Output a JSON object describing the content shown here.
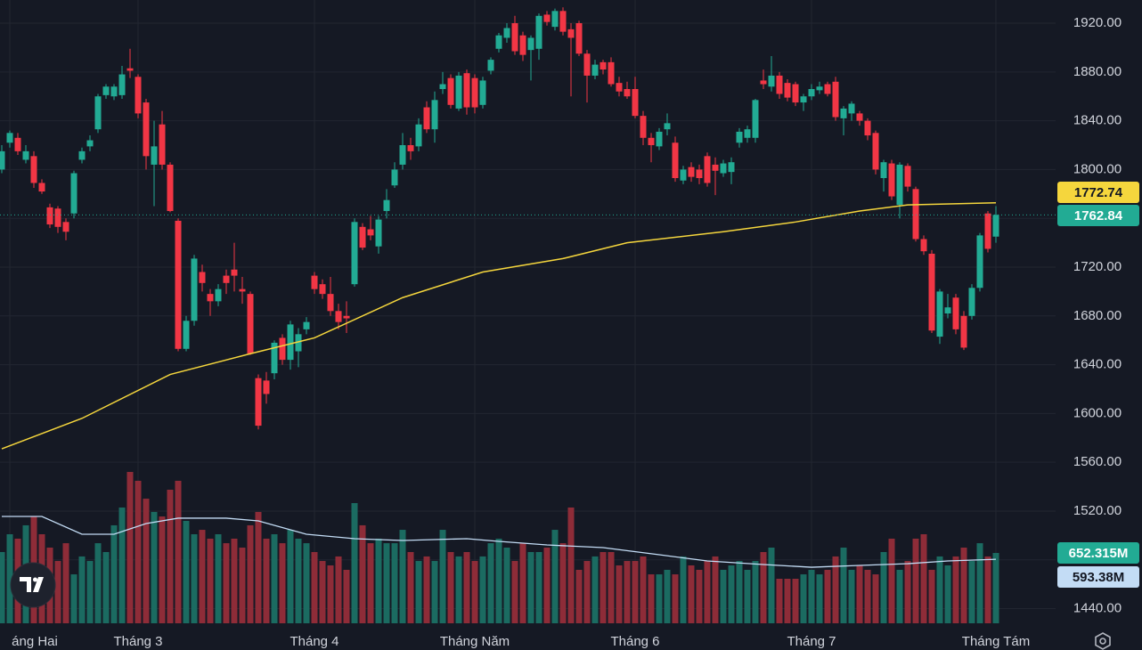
{
  "chart_data": {
    "type": "candlestick",
    "up_color": "#22ab94",
    "down_color": "#f23645",
    "volume_up_color": "#1b6b61",
    "volume_down_color": "#8e2c38",
    "grid": true,
    "ylim": [
      1428,
      1939
    ],
    "yticks": [
      {
        "value": 1440,
        "label": "1440.00"
      },
      {
        "value": 1480,
        "label": "1480.00"
      },
      {
        "value": 1520,
        "label": "1520.00"
      },
      {
        "value": 1560,
        "label": "1560.00"
      },
      {
        "value": 1600,
        "label": "1600.00"
      },
      {
        "value": 1640,
        "label": "1640.00"
      },
      {
        "value": 1680,
        "label": "1680.00"
      },
      {
        "value": 1720,
        "label": "1720.00"
      },
      {
        "value": 1760,
        "label": "1760.00"
      },
      {
        "value": 1800,
        "label": "1800.00"
      },
      {
        "value": 1840,
        "label": "1840.00"
      },
      {
        "value": 1880,
        "label": "1880.00"
      },
      {
        "value": 1920,
        "label": "1920.00"
      }
    ],
    "y2lim": [
      0,
      5782
    ],
    "xticks": [
      {
        "value": 1,
        "label": "áng Hai"
      },
      {
        "value": 17,
        "label": "Tháng 3"
      },
      {
        "value": 39,
        "label": "Tháng 4"
      },
      {
        "value": 59,
        "label": "Tháng Năm"
      },
      {
        "value": 79,
        "label": "Tháng 6"
      },
      {
        "value": 101,
        "label": "Tháng 7"
      },
      {
        "value": 124,
        "label": "Tháng Tám"
      }
    ],
    "candles": [
      [
        1800,
        1820,
        1797,
        1815
      ],
      [
        1822,
        1832,
        1818,
        1830
      ],
      [
        1826,
        1830,
        1812,
        1815
      ],
      [
        1808,
        1820,
        1805,
        1815
      ],
      [
        1811,
        1815,
        1785,
        1789
      ],
      [
        1789,
        1792,
        1780,
        1782
      ],
      [
        1769,
        1772,
        1752,
        1755
      ],
      [
        1768,
        1770,
        1748,
        1753
      ],
      [
        1757,
        1760,
        1742,
        1749
      ],
      [
        1764,
        1799,
        1760,
        1797
      ],
      [
        1808,
        1818,
        1805,
        1815
      ],
      [
        1819,
        1828,
        1815,
        1824
      ],
      [
        1833,
        1862,
        1830,
        1860
      ],
      [
        1861,
        1870,
        1858,
        1868
      ],
      [
        1860,
        1870,
        1857,
        1868
      ],
      [
        1861,
        1885,
        1858,
        1878
      ],
      [
        1883,
        1899,
        1875,
        1881
      ],
      [
        1876,
        1878,
        1842,
        1846
      ],
      [
        1855,
        1858,
        1800,
        1811
      ],
      [
        1804,
        1840,
        1770,
        1819
      ],
      [
        1837,
        1848,
        1800,
        1804
      ],
      [
        1804,
        1806,
        1765,
        1766
      ],
      [
        1758,
        1760,
        1651,
        1653
      ],
      [
        1653,
        1680,
        1651,
        1676
      ],
      [
        1676,
        1730,
        1672,
        1727
      ],
      [
        1716,
        1722,
        1700,
        1707
      ],
      [
        1698,
        1702,
        1680,
        1692
      ],
      [
        1692,
        1706,
        1688,
        1702
      ],
      [
        1713,
        1718,
        1698,
        1707
      ],
      [
        1718,
        1740,
        1700,
        1713
      ],
      [
        1702,
        1712,
        1690,
        1700
      ],
      [
        1698,
        1700,
        1648,
        1649
      ],
      [
        1629,
        1632,
        1587,
        1590
      ],
      [
        1627,
        1634,
        1608,
        1616
      ],
      [
        1633,
        1660,
        1628,
        1658
      ],
      [
        1662,
        1665,
        1640,
        1644
      ],
      [
        1644,
        1676,
        1636,
        1673
      ],
      [
        1651,
        1670,
        1638,
        1665
      ],
      [
        1669,
        1679,
        1665,
        1675
      ],
      [
        1713,
        1716,
        1698,
        1702
      ],
      [
        1706,
        1710,
        1694,
        1698
      ],
      [
        1698,
        1712,
        1680,
        1684
      ],
      [
        1684,
        1690,
        1669,
        1675
      ],
      [
        1680,
        1692,
        1666,
        1678
      ],
      [
        1706,
        1760,
        1704,
        1757
      ],
      [
        1753,
        1756,
        1734,
        1736
      ],
      [
        1751,
        1762,
        1742,
        1746
      ],
      [
        1737,
        1762,
        1731,
        1759
      ],
      [
        1766,
        1784,
        1760,
        1775
      ],
      [
        1787,
        1806,
        1785,
        1800
      ],
      [
        1804,
        1830,
        1800,
        1820
      ],
      [
        1820,
        1826,
        1808,
        1815
      ],
      [
        1819,
        1842,
        1815,
        1837
      ],
      [
        1851,
        1856,
        1830,
        1833
      ],
      [
        1833,
        1864,
        1822,
        1857
      ],
      [
        1866,
        1880,
        1862,
        1870
      ],
      [
        1875,
        1878,
        1850,
        1853
      ],
      [
        1850,
        1880,
        1848,
        1877
      ],
      [
        1879,
        1882,
        1845,
        1851
      ],
      [
        1875,
        1878,
        1846,
        1851
      ],
      [
        1853,
        1876,
        1850,
        1873
      ],
      [
        1881,
        1892,
        1878,
        1890
      ],
      [
        1899,
        1912,
        1896,
        1910
      ],
      [
        1908,
        1920,
        1904,
        1916
      ],
      [
        1920,
        1926,
        1894,
        1897
      ],
      [
        1910,
        1913,
        1889,
        1894
      ],
      [
        1898,
        1910,
        1873,
        1908
      ],
      [
        1899,
        1928,
        1890,
        1926
      ],
      [
        1927,
        1930,
        1918,
        1921
      ],
      [
        1917,
        1932,
        1914,
        1930
      ],
      [
        1930,
        1933,
        1910,
        1913
      ],
      [
        1915,
        1920,
        1860,
        1908
      ],
      [
        1920,
        1922,
        1893,
        1895
      ],
      [
        1895,
        1898,
        1855,
        1877
      ],
      [
        1877,
        1890,
        1874,
        1886
      ],
      [
        1888,
        1890,
        1878,
        1882
      ],
      [
        1888,
        1892,
        1868,
        1870
      ],
      [
        1871,
        1876,
        1860,
        1864
      ],
      [
        1866,
        1872,
        1858,
        1860
      ],
      [
        1866,
        1876,
        1842,
        1844
      ],
      [
        1844,
        1848,
        1820,
        1826
      ],
      [
        1826,
        1830,
        1806,
        1820
      ],
      [
        1819,
        1834,
        1816,
        1831
      ],
      [
        1833,
        1846,
        1828,
        1838
      ],
      [
        1822,
        1827,
        1790,
        1793
      ],
      [
        1791,
        1803,
        1788,
        1800
      ],
      [
        1802,
        1806,
        1790,
        1794
      ],
      [
        1800,
        1804,
        1788,
        1793
      ],
      [
        1811,
        1814,
        1786,
        1789
      ],
      [
        1804,
        1810,
        1779,
        1799
      ],
      [
        1797,
        1808,
        1794,
        1805
      ],
      [
        1798,
        1810,
        1788,
        1806
      ],
      [
        1822,
        1834,
        1818,
        1831
      ],
      [
        1826,
        1836,
        1822,
        1833
      ],
      [
        1826,
        1858,
        1822,
        1857
      ],
      [
        1873,
        1882,
        1866,
        1870
      ],
      [
        1868,
        1893,
        1864,
        1877
      ],
      [
        1877,
        1880,
        1858,
        1862
      ],
      [
        1871,
        1874,
        1856,
        1859
      ],
      [
        1870,
        1872,
        1852,
        1855
      ],
      [
        1855,
        1862,
        1848,
        1860
      ],
      [
        1860,
        1870,
        1857,
        1866
      ],
      [
        1865,
        1872,
        1862,
        1868
      ],
      [
        1870,
        1872,
        1860,
        1862
      ],
      [
        1872,
        1876,
        1840,
        1843
      ],
      [
        1842,
        1852,
        1828,
        1850
      ],
      [
        1846,
        1856,
        1840,
        1854
      ],
      [
        1846,
        1848,
        1836,
        1840
      ],
      [
        1840,
        1842,
        1824,
        1828
      ],
      [
        1830,
        1832,
        1796,
        1800
      ],
      [
        1793,
        1808,
        1782,
        1806
      ],
      [
        1805,
        1808,
        1775,
        1778
      ],
      [
        1771,
        1806,
        1760,
        1804
      ],
      [
        1803,
        1805,
        1782,
        1786
      ],
      [
        1784,
        1786,
        1741,
        1743
      ],
      [
        1743,
        1746,
        1730,
        1733
      ],
      [
        1731,
        1734,
        1666,
        1668
      ],
      [
        1663,
        1702,
        1657,
        1700
      ],
      [
        1682,
        1698,
        1678,
        1687
      ],
      [
        1695,
        1698,
        1665,
        1669
      ],
      [
        1680,
        1684,
        1652,
        1654
      ],
      [
        1680,
        1706,
        1677,
        1703
      ],
      [
        1703,
        1748,
        1700,
        1746
      ],
      [
        1764,
        1766,
        1732,
        1735
      ],
      [
        1745,
        1770,
        1740,
        1762.84
      ]
    ],
    "volume": {
      "axis": "y2",
      "values": [
        661,
        826,
        785,
        909,
        991,
        826,
        702,
        578,
        743,
        454,
        620,
        578,
        743,
        661,
        909,
        1074,
        1404,
        1322,
        1156,
        1033,
        991,
        1239,
        1322,
        950,
        826,
        867,
        785,
        826,
        743,
        785,
        702,
        909,
        1033,
        785,
        826,
        743,
        867,
        785,
        743,
        661,
        578,
        537,
        620,
        496,
        1115,
        909,
        743,
        785,
        743,
        743,
        867,
        661,
        578,
        620,
        578,
        867,
        661,
        620,
        661,
        578,
        620,
        743,
        785,
        702,
        578,
        743,
        661,
        661,
        702,
        867,
        743,
        1074,
        496,
        578,
        620,
        661,
        661,
        537,
        578,
        578,
        620,
        454,
        454,
        496,
        454,
        620,
        537,
        496,
        578,
        620,
        496,
        537,
        578,
        496,
        578,
        661,
        702,
        413,
        413,
        413,
        454,
        496,
        454,
        496,
        620,
        702,
        496,
        537,
        496,
        454,
        661,
        785,
        496,
        578,
        785,
        826,
        496,
        620,
        537,
        620,
        702,
        578,
        743,
        620,
        652.315
      ],
      "value_labels": {
        "124": "652.315M"
      }
    },
    "ma": {
      "color": "#f5d63d",
      "x": [
        0,
        10,
        21,
        31,
        39,
        50,
        60,
        70,
        78,
        90,
        99,
        107,
        113,
        124
      ],
      "values": [
        1571,
        1596,
        1632,
        1649,
        1662,
        1695,
        1716,
        1727,
        1740,
        1749,
        1757,
        1766,
        1771,
        1772.74
      ]
    },
    "volume_ma": {
      "axis": "y2",
      "color": "#c3dcf5",
      "x": [
        0,
        5,
        10,
        14,
        18,
        22,
        28,
        32,
        38,
        44,
        50,
        58,
        62,
        68,
        75,
        82,
        88,
        95,
        101,
        107,
        113,
        118,
        124
      ],
      "values": [
        991,
        991,
        826,
        826,
        925,
        975,
        975,
        950,
        826,
        785,
        768,
        785,
        760,
        727,
        702,
        636,
        578,
        545,
        520,
        537,
        553,
        578,
        593.38
      ],
      "value_labels": {
        "22": "593.38M"
      }
    }
  }
}
